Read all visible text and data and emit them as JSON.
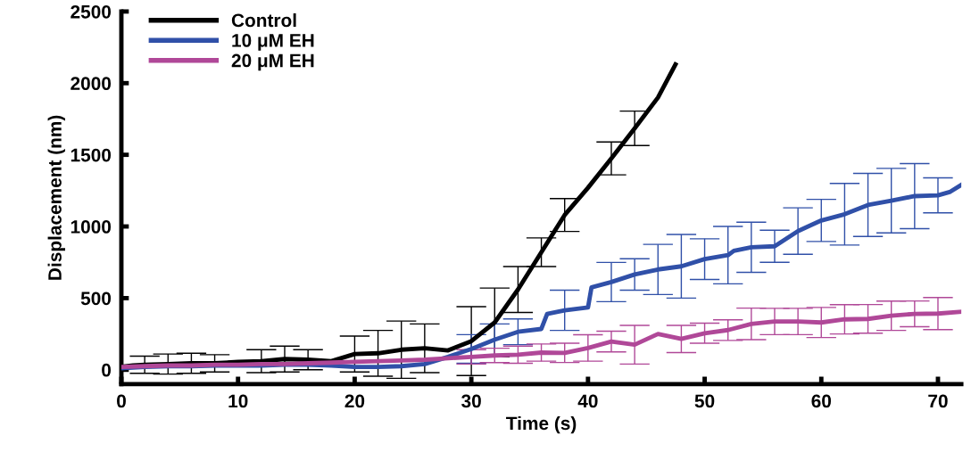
{
  "chart_data": {
    "type": "line",
    "xlabel": "Time (s)",
    "ylabel": "Displacement (nm)",
    "xlim": [
      0,
      72
    ],
    "ylim": [
      -100,
      2500
    ],
    "xticks": [
      0,
      10,
      20,
      30,
      40,
      50,
      60,
      70
    ],
    "yticks": [
      0,
      500,
      1000,
      1500,
      2000,
      2500
    ],
    "grid": false,
    "legend": "top left",
    "marker": "none",
    "line_style": "solid",
    "series": [
      {
        "name": "Control",
        "color": "#000000",
        "x": [
          0,
          1,
          2,
          4,
          6,
          8,
          10,
          12,
          14,
          16,
          18,
          20,
          22,
          24,
          26,
          28,
          30,
          32,
          34,
          36,
          38,
          40,
          42,
          44,
          46,
          47.5
        ],
        "values": [
          20,
          30,
          35,
          40,
          45,
          45,
          55,
          60,
          75,
          70,
          60,
          110,
          115,
          140,
          150,
          135,
          200,
          330,
          560,
          820,
          1080,
          1270,
          1475,
          1685,
          1900,
          2130
        ],
        "errors": [
          null,
          null,
          60,
          70,
          70,
          60,
          null,
          80,
          90,
          70,
          null,
          125,
          160,
          200,
          170,
          null,
          240,
          240,
          160,
          100,
          115,
          null,
          115,
          120,
          null,
          null
        ]
      },
      {
        "name": "10 μM EH",
        "color": "#3050a8",
        "x": [
          0,
          2,
          4,
          6,
          8,
          10,
          12,
          14,
          16,
          18,
          20,
          22,
          24,
          26,
          28,
          30,
          32,
          34,
          36,
          36.5,
          38,
          40,
          40.3,
          42,
          44,
          46,
          48,
          50,
          52,
          52.5,
          54,
          56,
          58,
          60,
          62,
          64,
          66,
          68,
          70,
          71,
          72
        ],
        "values": [
          10,
          20,
          25,
          25,
          30,
          30,
          30,
          35,
          35,
          30,
          20,
          20,
          25,
          40,
          90,
          145,
          210,
          265,
          285,
          390,
          415,
          435,
          575,
          612,
          665,
          700,
          722,
          772,
          800,
          830,
          855,
          862,
          968,
          1042,
          1085,
          1150,
          1180,
          1212,
          1217,
          1240,
          1290
        ],
        "errors": [
          null,
          null,
          null,
          null,
          null,
          null,
          null,
          null,
          null,
          null,
          null,
          null,
          null,
          null,
          null,
          100,
          110,
          90,
          null,
          null,
          140,
          null,
          null,
          137,
          110,
          175,
          222,
          142,
          200,
          null,
          175,
          112,
          162,
          147,
          215,
          220,
          225,
          227,
          122,
          null,
          null
        ]
      },
      {
        "name": "20 μM EH",
        "color": "#b04898",
        "x": [
          0,
          2,
          4,
          6,
          8,
          10,
          12,
          14,
          16,
          18,
          20,
          22,
          24,
          26,
          28,
          30,
          32,
          34,
          36,
          38,
          40,
          42,
          44,
          46,
          48,
          50,
          52,
          54,
          56,
          58,
          60,
          62,
          64,
          66,
          68,
          70,
          72
        ],
        "values": [
          20,
          25,
          30,
          30,
          35,
          35,
          40,
          40,
          45,
          50,
          55,
          60,
          65,
          70,
          80,
          90,
          100,
          105,
          120,
          118,
          152,
          197,
          175,
          250,
          215,
          255,
          277,
          320,
          337,
          337,
          330,
          352,
          355,
          377,
          390,
          392,
          405
        ],
        "errors": [
          null,
          null,
          null,
          null,
          null,
          null,
          null,
          null,
          null,
          null,
          null,
          null,
          null,
          null,
          null,
          50,
          50,
          60,
          60,
          67,
          92,
          72,
          135,
          null,
          95,
          70,
          72,
          110,
          92,
          92,
          105,
          102,
          100,
          102,
          90,
          112,
          null
        ]
      }
    ]
  }
}
